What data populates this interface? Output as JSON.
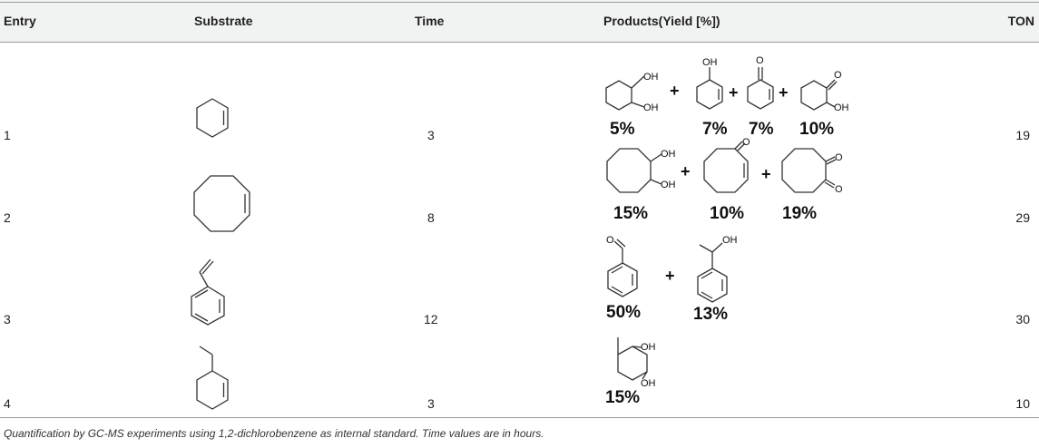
{
  "table": {
    "headers": {
      "entry": "Entry",
      "substrate": "Substrate",
      "time": "Time",
      "products": "Products(Yield [%])",
      "ton": "TON"
    },
    "rows": [
      {
        "entry": "1",
        "time": "3",
        "ton": "19",
        "yields": [
          "5%",
          "7%",
          "7%",
          "10%"
        ]
      },
      {
        "entry": "2",
        "time": "8",
        "ton": "29",
        "yields": [
          "15%",
          "10%",
          "19%"
        ]
      },
      {
        "entry": "3",
        "time": "12",
        "ton": "30",
        "yields": [
          "50%",
          "13%"
        ]
      },
      {
        "entry": "4",
        "time": "3",
        "ton": "10",
        "yields": [
          "15%"
        ]
      }
    ],
    "atom_labels": {
      "oh": "OH",
      "o": "O"
    },
    "plus": "+"
  },
  "footnote": "Quantification by GC-MS experiments using 1,2-dichlorobenzene as internal standard. Time values are in hours."
}
